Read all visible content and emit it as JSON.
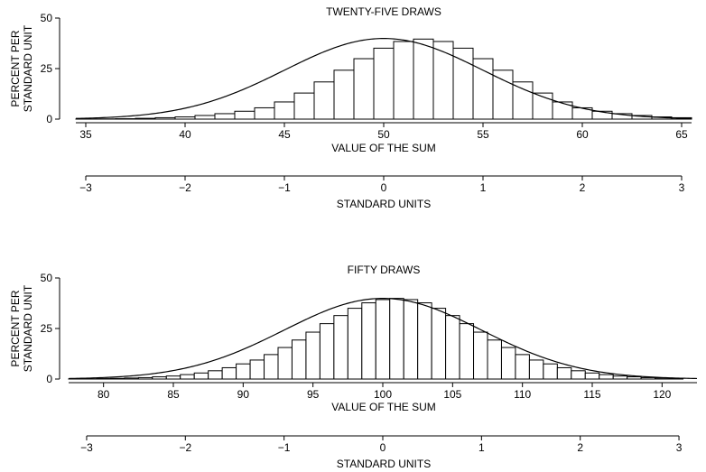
{
  "chart_data": [
    {
      "type": "bar",
      "title": "TWENTY-FIVE DRAWS",
      "xlabel": "VALUE OF THE SUM",
      "ylabel": "PERCENT PER STANDARD UNIT",
      "ylabel_lines": [
        "PERCENT PER",
        "STANDARD UNIT"
      ],
      "x_range": [
        34.5,
        65.5
      ],
      "ylim": [
        0,
        50
      ],
      "yticks": [
        "0",
        "25",
        "50"
      ],
      "xticks": [
        "35",
        "40",
        "45",
        "50",
        "55",
        "60",
        "65"
      ],
      "x_start": 35,
      "x_step": 1,
      "values": [
        0.05,
        0.1,
        0.2,
        0.4,
        0.7,
        1.1,
        1.8,
        2.7,
        3.9,
        5.6,
        8.5,
        12.9,
        18.4,
        24.2,
        29.9,
        35.1,
        38.4,
        39.6,
        38.4,
        35.1,
        29.9,
        24.2,
        18.4,
        12.9,
        8.5,
        5.6,
        3.9,
        2.7,
        1.8,
        1.1,
        0.7
      ],
      "normal_curve": {
        "mean": 50,
        "sd": 5,
        "peak": 39.9
      },
      "standard_units": {
        "label": "STANDARD UNITS",
        "ticks": [
          "−3",
          "−2",
          "−1",
          "0",
          "1",
          "2",
          "3"
        ],
        "mean": 50,
        "sd": 5
      }
    },
    {
      "type": "bar",
      "title": "FIFTY DRAWS",
      "xlabel": "VALUE OF THE SUM",
      "ylabel": "PERCENT PER STANDARD UNIT",
      "ylabel_lines": [
        "PERCENT PER",
        "STANDARD UNIT"
      ],
      "x_range": [
        77.5,
        122.5
      ],
      "ylim": [
        0,
        50
      ],
      "yticks": [
        "0",
        "25",
        "50"
      ],
      "xticks": [
        "80",
        "85",
        "90",
        "95",
        "100",
        "105",
        "110",
        "115",
        "120"
      ],
      "x_start": 78,
      "x_step": 1,
      "values": [
        0.05,
        0.1,
        0.2,
        0.3,
        0.5,
        0.7,
        1.1,
        1.5,
        2.2,
        3.0,
        4.1,
        5.6,
        7.5,
        9.4,
        12.1,
        15.6,
        19.3,
        23.2,
        27.4,
        31.4,
        35.0,
        37.7,
        39.3,
        39.9,
        39.3,
        37.7,
        35.0,
        31.4,
        27.4,
        23.2,
        19.3,
        15.6,
        12.1,
        9.4,
        7.5,
        5.6,
        4.1,
        3.0,
        2.2,
        1.5,
        1.1,
        0.7,
        0.5,
        0.3
      ],
      "normal_curve": {
        "mean": 100,
        "sd": 7.07,
        "peak": 39.9
      },
      "standard_units": {
        "label": "STANDARD UNITS",
        "ticks": [
          "−3",
          "−2",
          "−1",
          "0",
          "1",
          "2",
          "3"
        ],
        "mean": 100,
        "sd": 7.07
      }
    }
  ]
}
